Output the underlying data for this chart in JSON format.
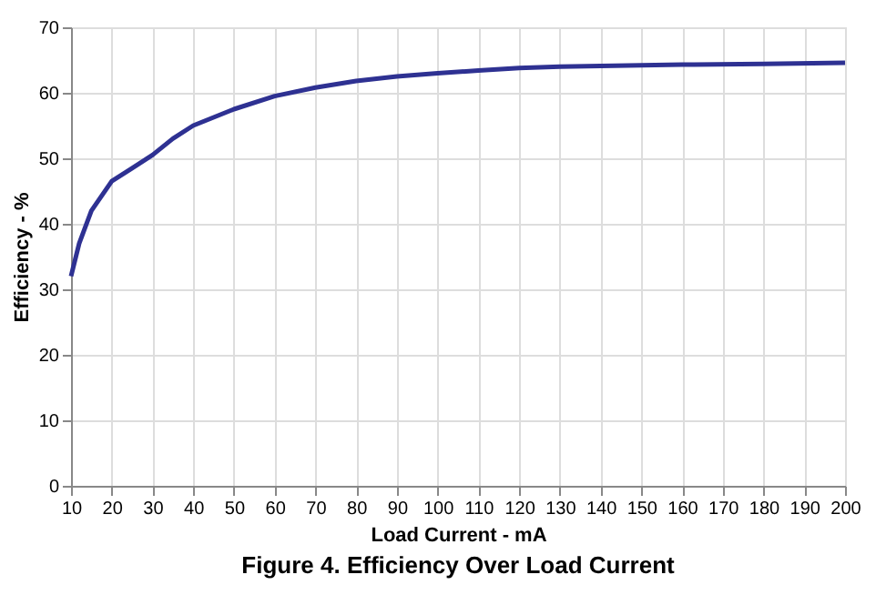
{
  "chart_data": {
    "type": "line",
    "title": "Figure 4. Efficiency Over Load Current",
    "xlabel": "Load Current - mA",
    "ylabel": "Efficiency - %",
    "x": [
      10,
      12,
      15,
      20,
      25,
      30,
      35,
      40,
      50,
      60,
      70,
      80,
      90,
      100,
      110,
      120,
      130,
      140,
      150,
      160,
      180,
      200
    ],
    "series": [
      {
        "color": "#2e3192",
        "values": [
          32,
          37,
          42,
          46.5,
          48.5,
          50.5,
          53,
          55,
          57.5,
          59.5,
          60.8,
          61.8,
          62.5,
          63,
          63.4,
          63.8,
          64,
          64.1,
          64.2,
          64.3,
          64.4,
          64.6
        ]
      }
    ],
    "xlim": [
      10,
      200
    ],
    "xticks": [
      10,
      20,
      30,
      40,
      50,
      60,
      70,
      80,
      90,
      100,
      110,
      120,
      130,
      140,
      150,
      160,
      170,
      180,
      190,
      200
    ],
    "ylim": [
      0,
      70
    ],
    "yticks": [
      0,
      10,
      20,
      30,
      40,
      50,
      60,
      70
    ],
    "grid": true,
    "marker": "none",
    "line_style": "solid"
  }
}
